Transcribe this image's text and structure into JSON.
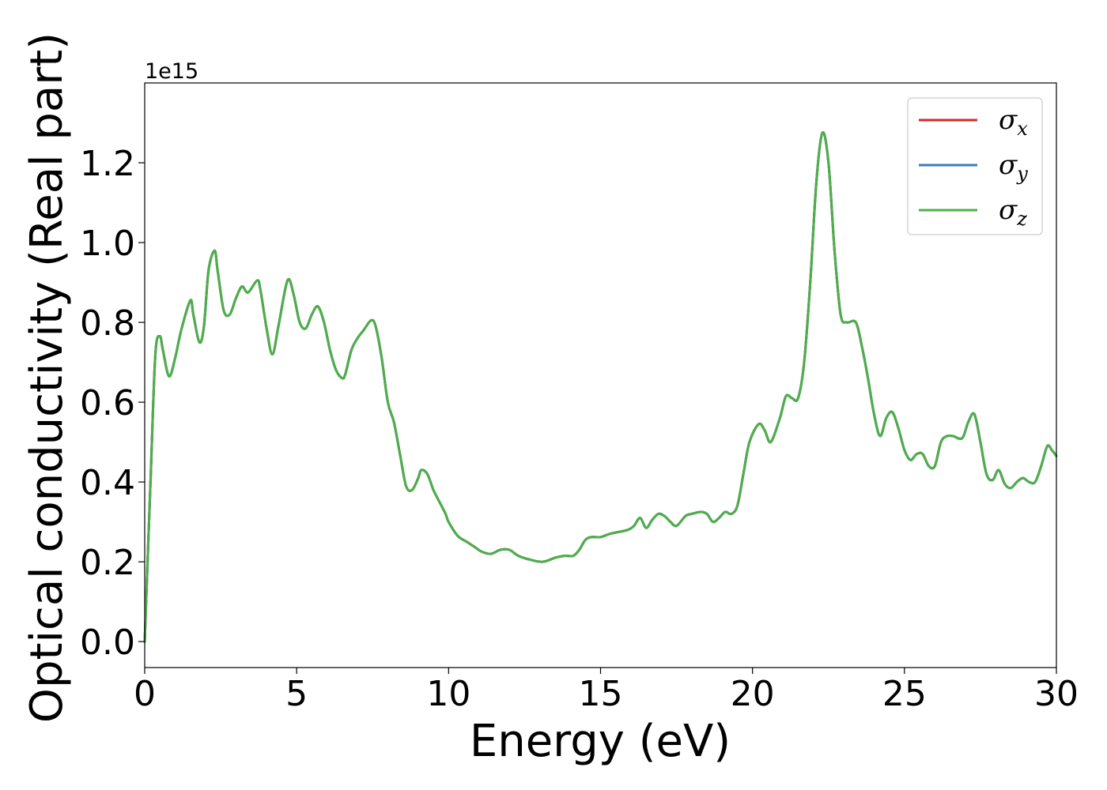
{
  "chart_data": {
    "type": "line",
    "xlabel": "Energy (eV)",
    "ylabel": "Optical conductivity (Real part)",
    "y_offset_label": "1e15",
    "xlim": [
      0,
      30
    ],
    "ylim": [
      -0.065,
      1.4
    ],
    "x_ticks": [
      0,
      5,
      10,
      15,
      20,
      25,
      30
    ],
    "x_tick_labels": [
      "0",
      "5",
      "10",
      "15",
      "20",
      "25",
      "30"
    ],
    "y_ticks": [
      0.0,
      0.2,
      0.4,
      0.6,
      0.8,
      1.0,
      1.2
    ],
    "y_tick_labels": [
      "0.0",
      "0.2",
      "0.4",
      "0.6",
      "0.8",
      "1.0",
      "1.2"
    ],
    "grid": false,
    "legend_position": "top-right",
    "x": [
      0,
      0.2,
      0.35,
      0.5,
      0.6,
      0.8,
      1.0,
      1.2,
      1.5,
      1.6,
      1.8,
      1.95,
      2.1,
      2.3,
      2.4,
      2.6,
      2.8,
      3.0,
      3.2,
      3.4,
      3.7,
      3.8,
      4.0,
      4.2,
      4.4,
      4.7,
      4.9,
      5.1,
      5.3,
      5.5,
      5.7,
      5.9,
      6.1,
      6.3,
      6.5,
      6.6,
      6.8,
      7.0,
      7.2,
      7.45,
      7.6,
      7.8,
      8.0,
      8.2,
      8.4,
      8.6,
      8.8,
      9.0,
      9.1,
      9.3,
      9.5,
      9.7,
      9.9,
      10.0,
      10.3,
      10.6,
      10.9,
      11.1,
      11.4,
      11.7,
      12.0,
      12.3,
      12.7,
      13.1,
      13.5,
      13.8,
      14.1,
      14.3,
      14.5,
      14.7,
      15.0,
      15.3,
      15.6,
      15.9,
      16.1,
      16.3,
      16.5,
      16.7,
      16.9,
      17.1,
      17.3,
      17.5,
      17.8,
      18.0,
      18.3,
      18.5,
      18.7,
      18.9,
      19.1,
      19.3,
      19.5,
      19.7,
      19.9,
      20.2,
      20.4,
      20.6,
      20.9,
      21.1,
      21.3,
      21.5,
      21.7,
      21.9,
      22.1,
      22.3,
      22.5,
      22.7,
      22.9,
      23.1,
      23.4,
      23.6,
      23.8,
      24.0,
      24.2,
      24.4,
      24.6,
      24.8,
      25.0,
      25.2,
      25.4,
      25.6,
      25.8,
      26.0,
      26.2,
      26.4,
      26.6,
      26.9,
      27.1,
      27.3,
      27.5,
      27.7,
      27.9,
      28.1,
      28.3,
      28.5,
      28.7,
      28.9,
      29.1,
      29.3,
      29.5,
      29.7,
      29.85,
      30.0
    ],
    "series": [
      {
        "name": "σx",
        "color": "#d62728",
        "values": [
          0.0,
          0.42,
          0.72,
          0.765,
          0.73,
          0.665,
          0.71,
          0.78,
          0.855,
          0.82,
          0.75,
          0.79,
          0.93,
          0.98,
          0.93,
          0.83,
          0.82,
          0.86,
          0.89,
          0.875,
          0.905,
          0.885,
          0.79,
          0.72,
          0.79,
          0.905,
          0.87,
          0.8,
          0.785,
          0.82,
          0.84,
          0.8,
          0.73,
          0.68,
          0.66,
          0.67,
          0.73,
          0.76,
          0.78,
          0.805,
          0.79,
          0.71,
          0.6,
          0.55,
          0.47,
          0.39,
          0.38,
          0.41,
          0.43,
          0.42,
          0.38,
          0.35,
          0.32,
          0.3,
          0.265,
          0.25,
          0.235,
          0.225,
          0.22,
          0.23,
          0.23,
          0.215,
          0.205,
          0.2,
          0.21,
          0.215,
          0.215,
          0.23,
          0.255,
          0.262,
          0.262,
          0.27,
          0.275,
          0.28,
          0.29,
          0.31,
          0.285,
          0.305,
          0.32,
          0.315,
          0.3,
          0.29,
          0.315,
          0.32,
          0.325,
          0.32,
          0.3,
          0.31,
          0.325,
          0.32,
          0.34,
          0.42,
          0.5,
          0.545,
          0.53,
          0.5,
          0.56,
          0.615,
          0.61,
          0.61,
          0.7,
          0.9,
          1.15,
          1.275,
          1.2,
          0.98,
          0.82,
          0.8,
          0.8,
          0.74,
          0.66,
          0.57,
          0.515,
          0.56,
          0.575,
          0.535,
          0.48,
          0.455,
          0.47,
          0.47,
          0.44,
          0.44,
          0.5,
          0.515,
          0.515,
          0.51,
          0.55,
          0.57,
          0.5,
          0.42,
          0.405,
          0.43,
          0.395,
          0.385,
          0.4,
          0.41,
          0.4,
          0.4,
          0.44,
          0.49,
          0.48,
          0.465
        ]
      },
      {
        "name": "σy",
        "color": "#377eb8",
        "values": [
          0.0,
          0.42,
          0.72,
          0.765,
          0.73,
          0.665,
          0.71,
          0.78,
          0.855,
          0.82,
          0.75,
          0.79,
          0.93,
          0.98,
          0.93,
          0.83,
          0.82,
          0.86,
          0.89,
          0.875,
          0.905,
          0.885,
          0.79,
          0.72,
          0.79,
          0.905,
          0.87,
          0.8,
          0.785,
          0.82,
          0.84,
          0.8,
          0.73,
          0.68,
          0.66,
          0.67,
          0.73,
          0.76,
          0.78,
          0.805,
          0.79,
          0.71,
          0.6,
          0.55,
          0.47,
          0.39,
          0.38,
          0.41,
          0.43,
          0.42,
          0.38,
          0.35,
          0.32,
          0.3,
          0.265,
          0.25,
          0.235,
          0.225,
          0.22,
          0.23,
          0.23,
          0.215,
          0.205,
          0.2,
          0.21,
          0.215,
          0.215,
          0.23,
          0.255,
          0.262,
          0.262,
          0.27,
          0.275,
          0.28,
          0.29,
          0.31,
          0.285,
          0.305,
          0.32,
          0.315,
          0.3,
          0.29,
          0.315,
          0.32,
          0.325,
          0.32,
          0.3,
          0.31,
          0.325,
          0.32,
          0.34,
          0.42,
          0.5,
          0.545,
          0.53,
          0.5,
          0.56,
          0.615,
          0.61,
          0.61,
          0.7,
          0.9,
          1.15,
          1.275,
          1.2,
          0.98,
          0.82,
          0.8,
          0.8,
          0.74,
          0.66,
          0.57,
          0.515,
          0.56,
          0.575,
          0.535,
          0.48,
          0.455,
          0.47,
          0.47,
          0.44,
          0.44,
          0.5,
          0.515,
          0.515,
          0.51,
          0.55,
          0.57,
          0.5,
          0.42,
          0.405,
          0.43,
          0.395,
          0.385,
          0.4,
          0.41,
          0.4,
          0.4,
          0.44,
          0.49,
          0.48,
          0.465
        ]
      },
      {
        "name": "σz",
        "color": "#4daf4a",
        "values": [
          0.0,
          0.42,
          0.72,
          0.765,
          0.73,
          0.665,
          0.71,
          0.78,
          0.855,
          0.82,
          0.75,
          0.79,
          0.93,
          0.98,
          0.93,
          0.83,
          0.82,
          0.86,
          0.89,
          0.875,
          0.905,
          0.885,
          0.79,
          0.72,
          0.79,
          0.905,
          0.87,
          0.8,
          0.785,
          0.82,
          0.84,
          0.8,
          0.73,
          0.68,
          0.66,
          0.67,
          0.73,
          0.76,
          0.78,
          0.805,
          0.79,
          0.71,
          0.6,
          0.55,
          0.47,
          0.39,
          0.38,
          0.41,
          0.43,
          0.42,
          0.38,
          0.35,
          0.32,
          0.3,
          0.265,
          0.25,
          0.235,
          0.225,
          0.22,
          0.23,
          0.23,
          0.215,
          0.205,
          0.2,
          0.21,
          0.215,
          0.215,
          0.23,
          0.255,
          0.262,
          0.262,
          0.27,
          0.275,
          0.28,
          0.29,
          0.31,
          0.285,
          0.305,
          0.32,
          0.315,
          0.3,
          0.29,
          0.315,
          0.32,
          0.325,
          0.32,
          0.3,
          0.31,
          0.325,
          0.32,
          0.34,
          0.42,
          0.5,
          0.545,
          0.53,
          0.5,
          0.56,
          0.615,
          0.61,
          0.61,
          0.7,
          0.9,
          1.15,
          1.275,
          1.2,
          0.98,
          0.82,
          0.8,
          0.8,
          0.74,
          0.66,
          0.57,
          0.515,
          0.56,
          0.575,
          0.535,
          0.48,
          0.455,
          0.47,
          0.47,
          0.44,
          0.44,
          0.5,
          0.515,
          0.515,
          0.51,
          0.55,
          0.57,
          0.5,
          0.42,
          0.405,
          0.43,
          0.395,
          0.385,
          0.4,
          0.41,
          0.4,
          0.4,
          0.44,
          0.49,
          0.48,
          0.465
        ]
      }
    ],
    "legend": [
      {
        "symbol": "σ",
        "sub": "x",
        "color": "#d62728"
      },
      {
        "symbol": "σ",
        "sub": "y",
        "color": "#377eb8"
      },
      {
        "symbol": "σ",
        "sub": "z",
        "color": "#4daf4a"
      }
    ]
  }
}
